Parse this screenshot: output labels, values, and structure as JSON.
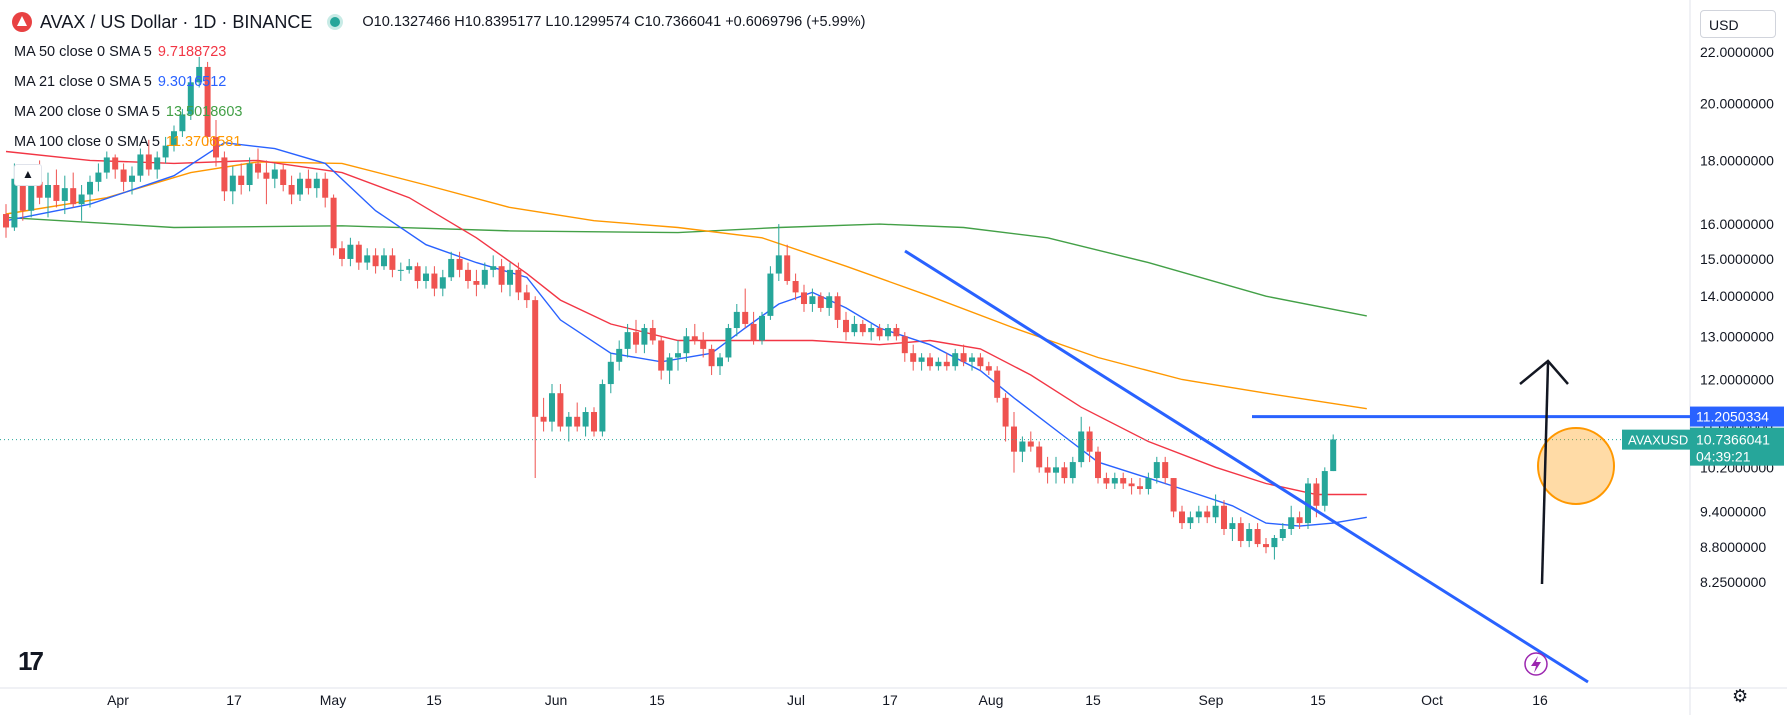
{
  "header": {
    "title": "AVAX / US Dollar · 1D · BINANCE",
    "ohlc": "O10.1327466 H10.8395177 L10.1299574 C10.7366041 +0.6069796 (+5.99%)"
  },
  "indicators": [
    {
      "label": "MA 50 close 0 SMA 5",
      "value": "9.7188723",
      "color": "#f23645"
    },
    {
      "label": "MA 21 close 0 SMA 5",
      "value": "9.3016512",
      "color": "#2962ff"
    },
    {
      "label": "MA 200 close 0 SMA 5",
      "value": "13.5018603",
      "color": "#43a047"
    },
    {
      "label": "MA 100 close 0 SMA 5",
      "value": "11.3706581",
      "color": "#ff9800"
    }
  ],
  "currency_selector": "USD",
  "collapse_icon": "chevron-up-icon",
  "brand_mark": "17",
  "settings_icon": "gear-icon",
  "chart_data": {
    "type": "candlestick",
    "symbol": "AVAXUSD",
    "price_axis": {
      "scale": "log",
      "ticks": [
        "22.0000000",
        "20.0000000",
        "18.0000000",
        "16.0000000",
        "15.0000000",
        "14.0000000",
        "13.0000000",
        "12.0000000",
        "11.0000000",
        "10.2000000",
        "9.4000000",
        "8.8000000",
        "8.2500000"
      ]
    },
    "time_axis": {
      "ticks": [
        "Apr",
        "17",
        "May",
        "15",
        "Jun",
        "15",
        "Jul",
        "17",
        "Aug",
        "15",
        "Sep",
        "15",
        "Oct",
        "16"
      ]
    },
    "labels": {
      "hline_price": "11.2050334",
      "symbol_tag": "AVAXUSD",
      "last_price": "10.7366041",
      "countdown": "04:39:21"
    },
    "colors": {
      "up": "#26a69a",
      "down": "#ef5350",
      "trendline": "#2962ff",
      "arrow": "#131722",
      "highlight": "#ff9800"
    },
    "candles": [
      [
        16.3,
        16.6,
        15.6,
        15.9
      ],
      [
        15.9,
        17.9,
        15.8,
        17.4
      ],
      [
        17.4,
        17.6,
        16.1,
        16.4
      ],
      [
        16.4,
        17.6,
        16.2,
        17.3
      ],
      [
        17.3,
        18.0,
        16.6,
        16.8
      ],
      [
        16.8,
        17.6,
        16.2,
        17.2
      ],
      [
        17.2,
        17.7,
        16.5,
        16.7
      ],
      [
        16.7,
        17.5,
        16.3,
        17.1
      ],
      [
        17.1,
        17.6,
        16.5,
        16.6
      ],
      [
        16.6,
        17.2,
        16.1,
        16.9
      ],
      [
        16.9,
        17.5,
        16.5,
        17.3
      ],
      [
        17.3,
        17.9,
        17.0,
        17.6
      ],
      [
        17.6,
        18.3,
        17.4,
        18.1
      ],
      [
        18.1,
        18.2,
        17.4,
        17.7
      ],
      [
        17.7,
        17.9,
        17.0,
        17.3
      ],
      [
        17.3,
        17.8,
        16.9,
        17.5
      ],
      [
        17.5,
        18.4,
        17.3,
        18.2
      ],
      [
        18.2,
        18.7,
        17.5,
        17.7
      ],
      [
        17.7,
        18.3,
        17.4,
        18.1
      ],
      [
        18.1,
        18.8,
        17.9,
        18.5
      ],
      [
        18.5,
        19.2,
        18.3,
        19.0
      ],
      [
        19.0,
        19.8,
        18.8,
        19.6
      ],
      [
        19.6,
        21.0,
        19.4,
        20.8
      ],
      [
        20.8,
        21.8,
        20.6,
        21.4
      ],
      [
        21.4,
        21.6,
        18.5,
        18.8
      ],
      [
        18.8,
        19.4,
        17.8,
        18.1
      ],
      [
        18.1,
        18.3,
        16.7,
        17.0
      ],
      [
        17.0,
        17.8,
        16.6,
        17.5
      ],
      [
        17.5,
        17.9,
        16.9,
        17.2
      ],
      [
        17.2,
        18.1,
        17.0,
        17.9
      ],
      [
        17.9,
        18.4,
        17.4,
        17.6
      ],
      [
        17.6,
        18.0,
        16.6,
        17.4
      ],
      [
        17.4,
        17.9,
        17.1,
        17.7
      ],
      [
        17.7,
        17.9,
        17.0,
        17.2
      ],
      [
        17.2,
        17.5,
        16.6,
        16.9
      ],
      [
        16.9,
        17.6,
        16.7,
        17.4
      ],
      [
        17.4,
        17.7,
        16.9,
        17.1
      ],
      [
        17.1,
        17.6,
        16.8,
        17.4
      ],
      [
        17.4,
        17.6,
        16.5,
        16.8
      ],
      [
        16.8,
        16.9,
        15.1,
        15.3
      ],
      [
        15.3,
        15.5,
        14.8,
        15.0
      ],
      [
        15.0,
        15.6,
        14.8,
        15.4
      ],
      [
        15.4,
        15.5,
        14.7,
        14.9
      ],
      [
        14.9,
        15.3,
        14.7,
        15.1
      ],
      [
        15.1,
        15.3,
        14.6,
        14.8
      ],
      [
        14.8,
        15.3,
        14.7,
        15.1
      ],
      [
        15.1,
        15.3,
        14.5,
        14.7
      ],
      [
        14.7,
        14.9,
        14.4,
        14.7
      ],
      [
        14.7,
        15.0,
        14.6,
        14.8
      ],
      [
        14.8,
        14.9,
        14.2,
        14.4
      ],
      [
        14.4,
        14.8,
        14.2,
        14.6
      ],
      [
        14.6,
        14.8,
        14.0,
        14.2
      ],
      [
        14.2,
        14.7,
        14.0,
        14.5
      ],
      [
        14.5,
        15.2,
        14.4,
        15.0
      ],
      [
        15.0,
        15.2,
        14.5,
        14.7
      ],
      [
        14.7,
        14.9,
        14.2,
        14.4
      ],
      [
        14.4,
        14.7,
        14.0,
        14.3
      ],
      [
        14.3,
        14.9,
        14.2,
        14.7
      ],
      [
        14.7,
        15.1,
        14.5,
        14.8
      ],
      [
        14.8,
        15.0,
        14.1,
        14.3
      ],
      [
        14.3,
        14.9,
        14.0,
        14.7
      ],
      [
        14.7,
        14.9,
        13.9,
        14.1
      ],
      [
        14.1,
        14.3,
        13.7,
        13.9
      ],
      [
        13.9,
        14.0,
        10.0,
        11.2
      ],
      [
        11.2,
        11.6,
        10.9,
        11.1
      ],
      [
        11.1,
        11.9,
        10.9,
        11.7
      ],
      [
        11.7,
        11.9,
        10.9,
        11.0
      ],
      [
        11.0,
        11.3,
        10.7,
        11.2
      ],
      [
        11.2,
        11.5,
        10.9,
        11.0
      ],
      [
        11.0,
        11.4,
        10.8,
        11.3
      ],
      [
        11.3,
        11.4,
        10.8,
        10.9
      ],
      [
        10.9,
        12.0,
        10.8,
        11.9
      ],
      [
        11.9,
        12.6,
        11.7,
        12.4
      ],
      [
        12.4,
        12.9,
        12.2,
        12.7
      ],
      [
        12.7,
        13.3,
        12.5,
        13.1
      ],
      [
        13.1,
        13.4,
        12.6,
        12.8
      ],
      [
        12.8,
        13.3,
        12.6,
        13.2
      ],
      [
        13.2,
        13.4,
        12.8,
        12.9
      ],
      [
        12.9,
        13.0,
        12.0,
        12.2
      ],
      [
        12.2,
        12.6,
        11.9,
        12.5
      ],
      [
        12.5,
        12.9,
        12.2,
        12.6
      ],
      [
        12.6,
        13.2,
        12.4,
        13.0
      ],
      [
        13.0,
        13.3,
        12.8,
        12.9
      ],
      [
        12.9,
        13.1,
        12.5,
        12.7
      ],
      [
        12.7,
        12.8,
        12.1,
        12.3
      ],
      [
        12.3,
        12.6,
        12.1,
        12.5
      ],
      [
        12.5,
        13.3,
        12.4,
        13.2
      ],
      [
        13.2,
        13.8,
        13.0,
        13.6
      ],
      [
        13.6,
        14.2,
        13.2,
        13.3
      ],
      [
        13.3,
        13.6,
        12.8,
        12.9
      ],
      [
        12.9,
        13.6,
        12.8,
        13.5
      ],
      [
        13.5,
        14.8,
        13.4,
        14.6
      ],
      [
        14.6,
        16.0,
        14.4,
        15.1
      ],
      [
        15.1,
        15.4,
        14.3,
        14.4
      ],
      [
        14.4,
        14.6,
        13.9,
        14.1
      ],
      [
        14.1,
        14.3,
        13.6,
        13.8
      ],
      [
        13.8,
        14.2,
        13.6,
        14.0
      ],
      [
        14.0,
        14.1,
        13.6,
        13.7
      ],
      [
        13.7,
        14.1,
        13.5,
        14.0
      ],
      [
        14.0,
        14.1,
        13.2,
        13.4
      ],
      [
        13.4,
        13.6,
        12.9,
        13.1
      ],
      [
        13.1,
        13.5,
        13.0,
        13.3
      ],
      [
        13.3,
        13.4,
        13.0,
        13.1
      ],
      [
        13.1,
        13.3,
        12.9,
        13.2
      ],
      [
        13.2,
        13.3,
        12.9,
        13.0
      ],
      [
        13.0,
        13.3,
        12.9,
        13.2
      ],
      [
        13.2,
        13.3,
        12.9,
        13.0
      ],
      [
        13.0,
        13.1,
        12.4,
        12.6
      ],
      [
        12.6,
        12.8,
        12.2,
        12.4
      ],
      [
        12.4,
        12.6,
        12.2,
        12.5
      ],
      [
        12.5,
        12.6,
        12.2,
        12.3
      ],
      [
        12.3,
        12.5,
        12.2,
        12.4
      ],
      [
        12.4,
        12.6,
        12.2,
        12.3
      ],
      [
        12.3,
        12.7,
        12.2,
        12.6
      ],
      [
        12.6,
        12.8,
        12.3,
        12.4
      ],
      [
        12.4,
        12.6,
        12.2,
        12.5
      ],
      [
        12.5,
        12.6,
        12.2,
        12.3
      ],
      [
        12.3,
        12.4,
        12.1,
        12.2
      ],
      [
        12.2,
        12.3,
        11.5,
        11.6
      ],
      [
        11.6,
        11.7,
        10.7,
        11.0
      ],
      [
        11.0,
        11.3,
        10.1,
        10.5
      ],
      [
        10.5,
        10.8,
        10.3,
        10.7
      ],
      [
        10.7,
        10.9,
        10.5,
        10.6
      ],
      [
        10.6,
        10.7,
        10.1,
        10.2
      ],
      [
        10.2,
        10.4,
        9.9,
        10.1
      ],
      [
        10.1,
        10.4,
        9.9,
        10.2
      ],
      [
        10.2,
        10.3,
        9.9,
        10.0
      ],
      [
        10.0,
        10.4,
        9.9,
        10.3
      ],
      [
        10.3,
        11.2,
        10.2,
        10.9
      ],
      [
        10.9,
        11.0,
        10.3,
        10.5
      ],
      [
        10.5,
        10.6,
        9.9,
        10.0
      ],
      [
        10.0,
        10.1,
        9.8,
        9.9
      ],
      [
        9.9,
        10.1,
        9.8,
        10.0
      ],
      [
        10.0,
        10.1,
        9.8,
        9.9
      ],
      [
        9.9,
        10.0,
        9.7,
        9.85
      ],
      [
        9.85,
        10.0,
        9.7,
        9.8
      ],
      [
        9.8,
        10.1,
        9.7,
        10.0
      ],
      [
        10.0,
        10.4,
        9.9,
        10.3
      ],
      [
        10.3,
        10.4,
        9.9,
        10.0
      ],
      [
        10.0,
        10.0,
        9.3,
        9.4
      ],
      [
        9.4,
        9.5,
        9.1,
        9.2
      ],
      [
        9.2,
        9.4,
        9.1,
        9.3
      ],
      [
        9.3,
        9.5,
        9.2,
        9.4
      ],
      [
        9.4,
        9.5,
        9.2,
        9.3
      ],
      [
        9.3,
        9.7,
        9.2,
        9.5
      ],
      [
        9.5,
        9.6,
        9.0,
        9.1
      ],
      [
        9.1,
        9.3,
        8.9,
        9.2
      ],
      [
        9.2,
        9.3,
        8.8,
        8.9
      ],
      [
        8.9,
        9.2,
        8.8,
        9.1
      ],
      [
        9.1,
        9.2,
        8.8,
        8.85
      ],
      [
        8.85,
        8.95,
        8.7,
        8.8
      ],
      [
        8.8,
        9.0,
        8.6,
        8.95
      ],
      [
        8.95,
        9.2,
        8.9,
        9.1
      ],
      [
        9.1,
        9.5,
        9.0,
        9.3
      ],
      [
        9.3,
        9.4,
        9.1,
        9.2
      ],
      [
        9.2,
        10.0,
        9.1,
        9.9
      ],
      [
        9.9,
        10.0,
        9.3,
        9.5
      ],
      [
        9.5,
        10.2,
        9.4,
        10.13
      ],
      [
        10.13,
        10.84,
        10.13,
        10.74
      ]
    ],
    "ma21": [
      [
        0,
        16.1
      ],
      [
        10,
        16.6
      ],
      [
        20,
        17.5
      ],
      [
        26,
        18.6
      ],
      [
        32,
        18.4
      ],
      [
        38,
        17.9
      ],
      [
        44,
        16.4
      ],
      [
        50,
        15.4
      ],
      [
        56,
        14.9
      ],
      [
        62,
        14.5
      ],
      [
        66,
        13.4
      ],
      [
        72,
        12.6
      ],
      [
        78,
        12.4
      ],
      [
        84,
        12.6
      ],
      [
        88,
        13.2
      ],
      [
        92,
        13.8
      ],
      [
        96,
        14.1
      ],
      [
        100,
        13.7
      ],
      [
        104,
        13.2
      ],
      [
        110,
        12.8
      ],
      [
        116,
        12.2
      ],
      [
        120,
        11.6
      ],
      [
        126,
        10.8
      ],
      [
        130,
        10.3
      ],
      [
        136,
        10.0
      ],
      [
        140,
        9.8
      ],
      [
        146,
        9.5
      ],
      [
        150,
        9.2
      ],
      [
        154,
        9.15
      ],
      [
        158,
        9.2
      ],
      [
        162,
        9.3
      ]
    ],
    "ma50": [
      [
        0,
        18.3
      ],
      [
        10,
        18.0
      ],
      [
        20,
        17.9
      ],
      [
        30,
        18.0
      ],
      [
        40,
        17.6
      ],
      [
        48,
        16.8
      ],
      [
        56,
        15.6
      ],
      [
        62,
        14.6
      ],
      [
        66,
        13.9
      ],
      [
        72,
        13.3
      ],
      [
        80,
        12.9
      ],
      [
        88,
        12.9
      ],
      [
        96,
        12.9
      ],
      [
        104,
        12.8
      ],
      [
        110,
        12.9
      ],
      [
        116,
        12.7
      ],
      [
        122,
        12.1
      ],
      [
        128,
        11.4
      ],
      [
        136,
        10.7
      ],
      [
        144,
        10.2
      ],
      [
        150,
        9.9
      ],
      [
        156,
        9.7
      ],
      [
        162,
        9.7
      ]
    ],
    "ma100": [
      [
        0,
        16.3
      ],
      [
        12,
        16.8
      ],
      [
        22,
        17.6
      ],
      [
        30,
        17.95
      ],
      [
        40,
        17.9
      ],
      [
        50,
        17.2
      ],
      [
        60,
        16.5
      ],
      [
        70,
        16.1
      ],
      [
        80,
        15.9
      ],
      [
        90,
        15.6
      ],
      [
        100,
        14.8
      ],
      [
        110,
        14.0
      ],
      [
        120,
        13.2
      ],
      [
        130,
        12.5
      ],
      [
        140,
        12.0
      ],
      [
        150,
        11.7
      ],
      [
        162,
        11.37
      ]
    ],
    "ma200": [
      [
        0,
        16.2
      ],
      [
        20,
        15.9
      ],
      [
        40,
        15.95
      ],
      [
        60,
        15.8
      ],
      [
        80,
        15.75
      ],
      [
        92,
        15.9
      ],
      [
        104,
        16.0
      ],
      [
        114,
        15.9
      ],
      [
        124,
        15.6
      ],
      [
        136,
        14.9
      ],
      [
        150,
        14.0
      ],
      [
        162,
        13.5
      ]
    ]
  }
}
